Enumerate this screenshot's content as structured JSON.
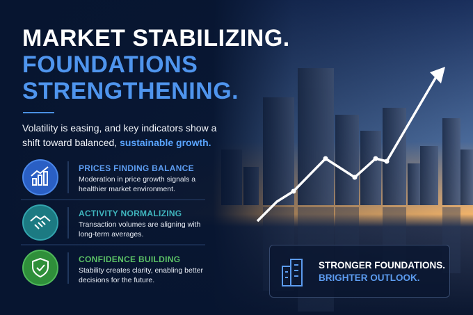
{
  "headline": {
    "line1": "MARKET STABILIZING.",
    "line2": "FOUNDATIONS",
    "line3": "STRENGTHENING."
  },
  "intro": {
    "text": "Volatility is easing, and key indicators show a shift toward balanced,",
    "highlight": "sustainable growth."
  },
  "items": [
    {
      "title": "PRICES FINDING BALANCE",
      "description": "Moderation in price growth signals a healthier market environment."
    },
    {
      "title": "ACTIVITY NORMALIZING",
      "description": "Transaction volumes are aligning with long-term averages."
    },
    {
      "title": "CONFIDENCE BUILDING",
      "description": "Stability creates clarity, enabling better decisions for the future."
    }
  ],
  "callout": {
    "line1": "STRONGER FOUNDATIONS.",
    "line2": "BRIGHTER OUTLOOK."
  }
}
